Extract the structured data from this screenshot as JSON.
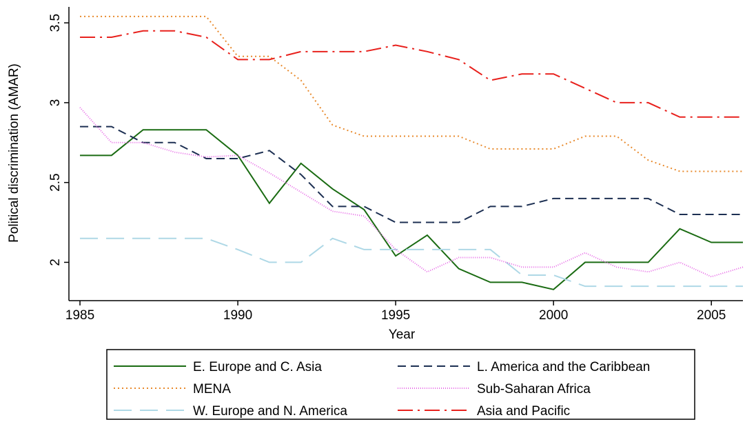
{
  "chart_data": {
    "type": "line",
    "x_label": "Year",
    "y_label": "Political discrimination (AMAR)",
    "x": [
      1985,
      1986,
      1987,
      1988,
      1989,
      1990,
      1991,
      1992,
      1993,
      1994,
      1995,
      1996,
      1997,
      1998,
      1999,
      2000,
      2001,
      2002,
      2003,
      2004,
      2005,
      2006
    ],
    "xlim": [
      1984.65,
      2006
    ],
    "xticks": [
      1985,
      1990,
      1995,
      2000,
      2005
    ],
    "ylim": [
      1.76,
      3.6
    ],
    "yticks": [
      2,
      2.5,
      3,
      3.5
    ],
    "legend": "bottom",
    "series": [
      {
        "name": "E. Europe and C. Asia",
        "color": "#1a6b12",
        "dash": "solid",
        "values": [
          2.67,
          2.67,
          2.83,
          2.83,
          2.83,
          2.67,
          2.37,
          2.62,
          2.46,
          2.33,
          2.04,
          2.17,
          1.96,
          1.875,
          1.875,
          1.83,
          2.0,
          2.0,
          2.0,
          2.21,
          2.125,
          2.125
        ]
      },
      {
        "name": "MENA",
        "color": "#e8892b",
        "dash": "dot",
        "values": [
          3.54,
          3.54,
          3.54,
          3.54,
          3.54,
          3.29,
          3.29,
          3.14,
          2.86,
          2.79,
          2.79,
          2.79,
          2.79,
          2.71,
          2.71,
          2.71,
          2.79,
          2.79,
          2.64,
          2.57,
          2.57,
          2.57
        ]
      },
      {
        "name": "W. Europe and N. America",
        "color": "#aed8e6",
        "dash": "longdash",
        "values": [
          2.15,
          2.15,
          2.15,
          2.15,
          2.15,
          2.08,
          2.0,
          2.0,
          2.15,
          2.08,
          2.08,
          2.08,
          2.08,
          2.08,
          1.92,
          1.92,
          1.85,
          1.85,
          1.85,
          1.85,
          1.85,
          1.85
        ]
      },
      {
        "name": "L. America and the Caribbean",
        "color": "#1c2f52",
        "dash": "dash",
        "values": [
          2.85,
          2.85,
          2.75,
          2.75,
          2.65,
          2.65,
          2.7,
          2.55,
          2.35,
          2.35,
          2.25,
          2.25,
          2.25,
          2.35,
          2.35,
          2.4,
          2.4,
          2.4,
          2.4,
          2.3,
          2.3,
          2.3
        ]
      },
      {
        "name": "Sub-Saharan Africa",
        "color": "#e667e6",
        "dash": "finedot",
        "values": [
          2.97,
          2.75,
          2.75,
          2.69,
          2.66,
          2.67,
          2.56,
          2.44,
          2.32,
          2.29,
          2.08,
          1.94,
          2.03,
          2.03,
          1.97,
          1.97,
          2.06,
          1.97,
          1.94,
          2.0,
          1.91,
          1.97
        ]
      },
      {
        "name": "Asia and Pacific",
        "color": "#e8201c",
        "dash": "dashdot",
        "values": [
          3.41,
          3.41,
          3.45,
          3.45,
          3.41,
          3.27,
          3.27,
          3.32,
          3.32,
          3.32,
          3.36,
          3.32,
          3.27,
          3.14,
          3.18,
          3.18,
          3.09,
          3.0,
          3.0,
          2.91,
          2.91,
          2.91
        ]
      }
    ]
  }
}
